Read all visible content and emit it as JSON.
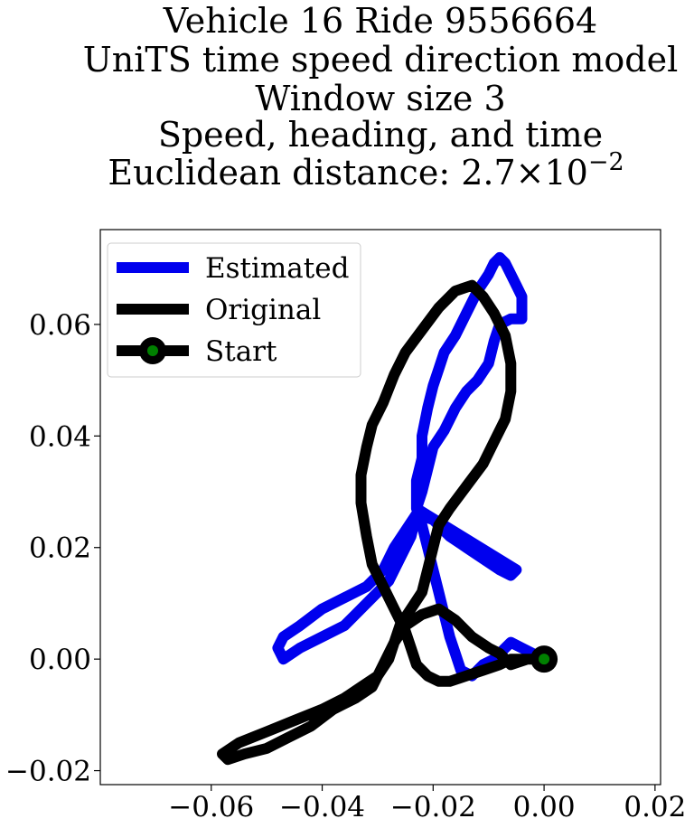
{
  "chart_data": {
    "type": "line",
    "title_lines": [
      "Vehicle 16 Ride 9556664",
      "UniTS time speed direction model",
      "Window size 3",
      "Speed, heading, and time",
      "Euclidean distance: 2.7×10"
    ],
    "title_exponent": "−2",
    "xlabel": "",
    "ylabel": "",
    "xlim": [
      -0.08,
      0.021
    ],
    "ylim": [
      -0.0225,
      0.077
    ],
    "xticks": [
      -0.06,
      -0.04,
      -0.02,
      0.0,
      0.02
    ],
    "xtick_labels": [
      "−0.06",
      "−0.04",
      "−0.02",
      "0.00",
      "0.02"
    ],
    "yticks": [
      -0.02,
      0.0,
      0.02,
      0.04,
      0.06
    ],
    "ytick_labels": [
      "−0.02",
      "0.00",
      "0.02",
      "0.04",
      "0.06"
    ],
    "grid": false,
    "legend_placement": "upper-left",
    "series": [
      {
        "name": "Estimated",
        "color": "#0000ee",
        "points": [
          [
            0.0,
            0.0
          ],
          [
            -0.004,
            0.002
          ],
          [
            -0.006,
            0.003
          ],
          [
            -0.007,
            0.002
          ],
          [
            -0.009,
            0.0
          ],
          [
            -0.011,
            -0.001
          ],
          [
            -0.013,
            -0.003
          ],
          [
            -0.015,
            -0.002
          ],
          [
            -0.016,
            0.001
          ],
          [
            -0.017,
            0.004
          ],
          [
            -0.018,
            0.008
          ],
          [
            -0.019,
            0.012
          ],
          [
            -0.02,
            0.016
          ],
          [
            -0.021,
            0.02
          ],
          [
            -0.022,
            0.024
          ],
          [
            -0.023,
            0.026
          ],
          [
            -0.024,
            0.022
          ],
          [
            -0.026,
            0.018
          ],
          [
            -0.028,
            0.014
          ],
          [
            -0.031,
            0.011
          ],
          [
            -0.034,
            0.008
          ],
          [
            -0.036,
            0.006
          ],
          [
            -0.04,
            0.004
          ],
          [
            -0.044,
            0.002
          ],
          [
            -0.047,
            0.0
          ],
          [
            -0.048,
            0.002
          ],
          [
            -0.047,
            0.004
          ],
          [
            -0.044,
            0.006
          ],
          [
            -0.04,
            0.009
          ],
          [
            -0.036,
            0.011
          ],
          [
            -0.032,
            0.013
          ],
          [
            -0.029,
            0.016
          ],
          [
            -0.027,
            0.02
          ],
          [
            -0.025,
            0.023
          ],
          [
            -0.023,
            0.026
          ],
          [
            -0.02,
            0.025
          ],
          [
            -0.017,
            0.022
          ],
          [
            -0.014,
            0.02
          ],
          [
            -0.011,
            0.018
          ],
          [
            -0.008,
            0.016
          ],
          [
            -0.006,
            0.015
          ],
          [
            -0.005,
            0.016
          ],
          [
            -0.023,
            0.027
          ],
          [
            -0.023,
            0.032
          ],
          [
            -0.022,
            0.036
          ],
          [
            -0.022,
            0.04
          ],
          [
            -0.021,
            0.045
          ],
          [
            -0.02,
            0.049
          ],
          [
            -0.019,
            0.052
          ],
          [
            -0.018,
            0.055
          ],
          [
            -0.016,
            0.058
          ],
          [
            -0.014,
            0.062
          ],
          [
            -0.012,
            0.066
          ],
          [
            -0.01,
            0.069
          ],
          [
            -0.009,
            0.071
          ],
          [
            -0.008,
            0.072
          ],
          [
            -0.007,
            0.071
          ],
          [
            -0.006,
            0.069
          ],
          [
            -0.005,
            0.067
          ],
          [
            -0.004,
            0.065
          ],
          [
            -0.004,
            0.062
          ],
          [
            -0.004,
            0.061
          ],
          [
            -0.006,
            0.061
          ],
          [
            -0.008,
            0.06
          ],
          [
            -0.009,
            0.057
          ],
          [
            -0.01,
            0.053
          ],
          [
            -0.012,
            0.05
          ],
          [
            -0.014,
            0.048
          ],
          [
            -0.016,
            0.045
          ],
          [
            -0.018,
            0.041
          ],
          [
            -0.02,
            0.038
          ],
          [
            -0.021,
            0.034
          ],
          [
            -0.022,
            0.03
          ],
          [
            -0.023,
            0.027
          ]
        ]
      },
      {
        "name": "Original",
        "color": "#000000",
        "points": [
          [
            0.0,
            0.0
          ],
          [
            -0.003,
            0.0
          ],
          [
            -0.006,
            -0.001
          ],
          [
            -0.007,
            0.0
          ],
          [
            -0.008,
            0.001
          ],
          [
            -0.01,
            0.002
          ],
          [
            -0.013,
            0.004
          ],
          [
            -0.016,
            0.007
          ],
          [
            -0.019,
            0.009
          ],
          [
            -0.022,
            0.008
          ],
          [
            -0.025,
            0.006
          ],
          [
            -0.027,
            0.003
          ],
          [
            -0.028,
            0.0
          ],
          [
            -0.03,
            -0.003
          ],
          [
            -0.033,
            -0.005
          ],
          [
            -0.036,
            -0.007
          ],
          [
            -0.04,
            -0.009
          ],
          [
            -0.045,
            -0.011
          ],
          [
            -0.05,
            -0.013
          ],
          [
            -0.055,
            -0.015
          ],
          [
            -0.058,
            -0.017
          ],
          [
            -0.057,
            -0.018
          ],
          [
            -0.054,
            -0.017
          ],
          [
            -0.05,
            -0.016
          ],
          [
            -0.046,
            -0.014
          ],
          [
            -0.042,
            -0.012
          ],
          [
            -0.038,
            -0.009
          ],
          [
            -0.034,
            -0.007
          ],
          [
            -0.031,
            -0.005
          ],
          [
            -0.029,
            -0.001
          ],
          [
            -0.027,
            0.003
          ],
          [
            -0.026,
            0.006
          ],
          [
            -0.024,
            0.009
          ],
          [
            -0.022,
            0.012
          ],
          [
            -0.021,
            0.016
          ],
          [
            -0.02,
            0.02
          ],
          [
            -0.019,
            0.024
          ],
          [
            -0.017,
            0.027
          ],
          [
            -0.014,
            0.031
          ],
          [
            -0.011,
            0.035
          ],
          [
            -0.009,
            0.039
          ],
          [
            -0.007,
            0.043
          ],
          [
            -0.006,
            0.048
          ],
          [
            -0.006,
            0.053
          ],
          [
            -0.007,
            0.058
          ],
          [
            -0.009,
            0.062
          ],
          [
            -0.011,
            0.065
          ],
          [
            -0.013,
            0.067
          ],
          [
            -0.016,
            0.066
          ],
          [
            -0.019,
            0.063
          ],
          [
            -0.022,
            0.059
          ],
          [
            -0.025,
            0.055
          ],
          [
            -0.027,
            0.051
          ],
          [
            -0.029,
            0.046
          ],
          [
            -0.031,
            0.042
          ],
          [
            -0.032,
            0.038
          ],
          [
            -0.033,
            0.033
          ],
          [
            -0.033,
            0.028
          ],
          [
            -0.032,
            0.022
          ],
          [
            -0.031,
            0.017
          ],
          [
            -0.029,
            0.013
          ],
          [
            -0.027,
            0.009
          ],
          [
            -0.025,
            0.005
          ],
          [
            -0.024,
            0.002
          ],
          [
            -0.023,
            -0.001
          ],
          [
            -0.021,
            -0.003
          ],
          [
            -0.019,
            -0.004
          ],
          [
            -0.017,
            -0.004
          ],
          [
            -0.014,
            -0.003
          ],
          [
            -0.011,
            -0.002
          ],
          [
            -0.008,
            -0.001
          ],
          [
            -0.006,
            0.0
          ],
          [
            -0.004,
            0.0
          ],
          [
            -0.002,
            0.0
          ],
          [
            0.0,
            0.0
          ]
        ]
      }
    ],
    "legend": [
      {
        "name": "Estimated",
        "color": "#0000ee",
        "marker": false
      },
      {
        "name": "Original",
        "color": "#000000",
        "marker": false
      },
      {
        "name": "Start",
        "color": "#000000",
        "marker": true,
        "marker_face": "#008000"
      }
    ],
    "start_marker": {
      "x": 0.0,
      "y": 0.0,
      "edge_color": "#000000",
      "face_color": "#008000"
    }
  }
}
